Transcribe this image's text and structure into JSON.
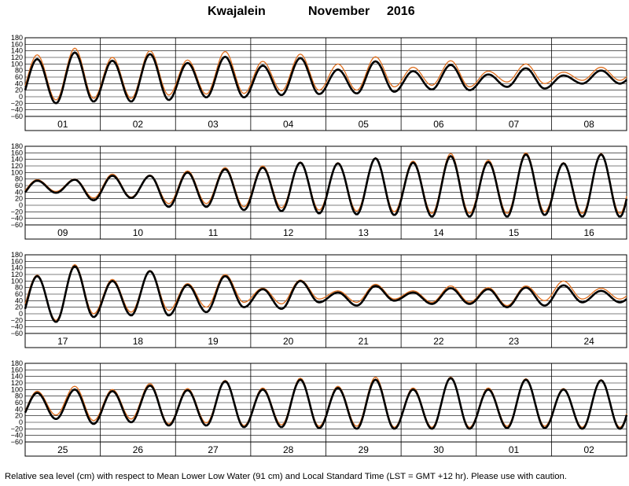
{
  "title": {
    "station": "Kwajalein",
    "month": "November",
    "year": "2016"
  },
  "caption": "Relative sea level (cm) with respect to Mean Lower Low Water (91 cm) and Local Standard Time (LST = GMT +12 hr). Please use with caution.",
  "colors": {
    "observed": "#000000",
    "predicted": "#e07020",
    "grid": "#000000"
  },
  "chart_data": [
    {
      "type": "line",
      "ylim": [
        -60,
        180
      ],
      "yticks": [
        "180",
        "160",
        "140",
        "120",
        "100",
        "80",
        "60",
        "40",
        "20",
        "0",
        "−20",
        "−40",
        "−60"
      ],
      "categories": [
        "01",
        "02",
        "03",
        "04",
        "05",
        "06",
        "07",
        "08"
      ],
      "grid": true,
      "series": [
        {
          "highs": [
            115,
            135,
            110,
            130,
            103,
            122,
            95,
            118,
            83,
            108,
            78,
            97,
            68,
            87,
            65,
            80
          ],
          "lows": [
            -18,
            -20,
            -15,
            -15,
            -10,
            -2,
            -2,
            5,
            8,
            10,
            15,
            22,
            20,
            30,
            25,
            40
          ]
        },
        {
          "highs": [
            128,
            148,
            120,
            140,
            112,
            138,
            108,
            130,
            100,
            122,
            90,
            110,
            78,
            100,
            75,
            90
          ],
          "lows": [
            -5,
            -10,
            -5,
            -5,
            5,
            8,
            10,
            18,
            20,
            20,
            30,
            35,
            30,
            45,
            40,
            50
          ]
        }
      ]
    },
    {
      "type": "line",
      "ylim": [
        -60,
        180
      ],
      "yticks": [
        "180",
        "160",
        "140",
        "120",
        "100",
        "80",
        "60",
        "40",
        "20",
        "0",
        "−20",
        "−40",
        "−60"
      ],
      "categories": [
        "09",
        "10",
        "11",
        "12",
        "13",
        "14",
        "15",
        "16"
      ],
      "grid": true,
      "series": [
        {
          "highs": [
            75,
            78,
            90,
            90,
            100,
            110,
            115,
            130,
            128,
            143,
            130,
            150,
            132,
            155,
            128,
            155
          ],
          "lows": [
            25,
            38,
            15,
            22,
            -5,
            -5,
            -15,
            -18,
            -25,
            -28,
            -30,
            -35,
            -35,
            -35,
            -30,
            -35
          ]
        },
        {
          "highs": [
            78,
            80,
            95,
            92,
            105,
            115,
            120,
            132,
            130,
            145,
            135,
            158,
            138,
            160,
            130,
            158
          ],
          "lows": [
            32,
            42,
            22,
            25,
            5,
            5,
            -5,
            -8,
            -15,
            -18,
            -20,
            -25,
            -25,
            -25,
            -20,
            -25
          ]
        }
      ]
    },
    {
      "type": "line",
      "ylim": [
        -60,
        180
      ],
      "yticks": [
        "180",
        "160",
        "140",
        "120",
        "100",
        "80",
        "60",
        "40",
        "20",
        "0",
        "−20",
        "−40",
        "−60"
      ],
      "categories": [
        "17",
        "18",
        "19",
        "20",
        "21",
        "22",
        "23",
        "24"
      ],
      "grid": true,
      "series": [
        {
          "highs": [
            115,
            145,
            100,
            130,
            88,
            115,
            75,
            100,
            65,
            85,
            65,
            78,
            75,
            80,
            87,
            70
          ],
          "lows": [
            -25,
            -25,
            -10,
            -5,
            -5,
            5,
            20,
            15,
            35,
            25,
            40,
            30,
            30,
            20,
            25,
            35
          ]
        },
        {
          "highs": [
            118,
            150,
            105,
            132,
            92,
            120,
            78,
            103,
            70,
            90,
            70,
            85,
            80,
            85,
            100,
            78
          ],
          "lows": [
            -5,
            -20,
            0,
            5,
            10,
            20,
            35,
            30,
            45,
            35,
            45,
            35,
            35,
            25,
            40,
            45
          ]
        }
      ]
    },
    {
      "type": "line",
      "ylim": [
        -60,
        180
      ],
      "yticks": [
        "180",
        "160",
        "140",
        "120",
        "100",
        "80",
        "60",
        "40",
        "20",
        "0",
        "−20",
        "−40",
        "−60"
      ],
      "categories": [
        "25",
        "26",
        "27",
        "28",
        "29",
        "30",
        "01",
        "02"
      ],
      "grid": true,
      "series": [
        {
          "highs": [
            90,
            100,
            95,
            112,
            98,
            125,
            100,
            130,
            105,
            130,
            100,
            135,
            100,
            130,
            100,
            128
          ],
          "lows": [
            5,
            10,
            -5,
            0,
            -10,
            -10,
            -15,
            -15,
            -18,
            -20,
            -20,
            -20,
            -20,
            -18,
            -18,
            -20
          ]
        },
        {
          "highs": [
            95,
            110,
            100,
            118,
            103,
            128,
            105,
            135,
            110,
            138,
            105,
            138,
            105,
            133,
            103,
            130
          ],
          "lows": [
            10,
            22,
            5,
            10,
            -5,
            -2,
            -10,
            -8,
            -12,
            -12,
            -15,
            -15,
            -15,
            -12,
            -12,
            -15
          ]
        }
      ]
    }
  ]
}
